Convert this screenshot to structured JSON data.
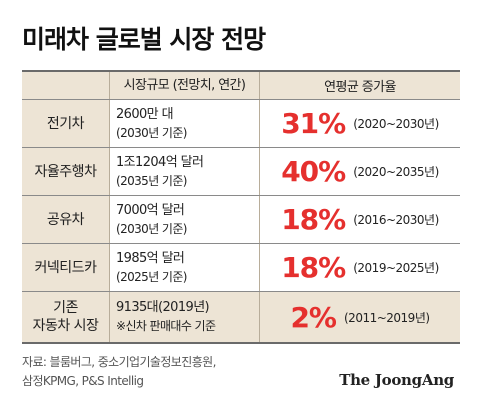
{
  "title": "미래차 글로벌 시장 전망",
  "table": {
    "header": {
      "col1": "",
      "col2": "시장규모 (전망치, 연간)",
      "col3": "연평균 증가율"
    },
    "rows": [
      {
        "name_line1": "전기차",
        "name_line2": "",
        "size_line1": "2600만 대",
        "size_line2": "(2030년 기준)",
        "rate": "31%",
        "period": "(2020~2030년)"
      },
      {
        "name_line1": "자율주행차",
        "name_line2": "",
        "size_line1": "1조1204억 달러",
        "size_line2": "(2035년 기준)",
        "rate": "40%",
        "period": "(2020~2035년)"
      },
      {
        "name_line1": "공유차",
        "name_line2": "",
        "size_line1": "7000억 달러",
        "size_line2": "(2030년 기준)",
        "rate": "18%",
        "period": "(2016~2030년)"
      },
      {
        "name_line1": "커넥티드카",
        "name_line2": "",
        "size_line1": "1985억 달러",
        "size_line2": "(2025년 기준)",
        "rate": "18%",
        "period": "(2019~2025년)"
      },
      {
        "name_line1": "기존",
        "name_line2": "자동차 시장",
        "size_line1": "9135대(2019년)",
        "size_line2": "※신차 판매대수 기준",
        "rate": "2%",
        "period": "(2011~2019년)"
      }
    ]
  },
  "source_line1": "자료: 블룸버그, 중소기업기술정보진흥원,",
  "source_line2": "삼정KPMG, P&S Intellig",
  "logo": "The JoongAng",
  "colors": {
    "accent": "#e5302e",
    "header_bg": "#ede4d5",
    "border": "#6a6a6a"
  }
}
